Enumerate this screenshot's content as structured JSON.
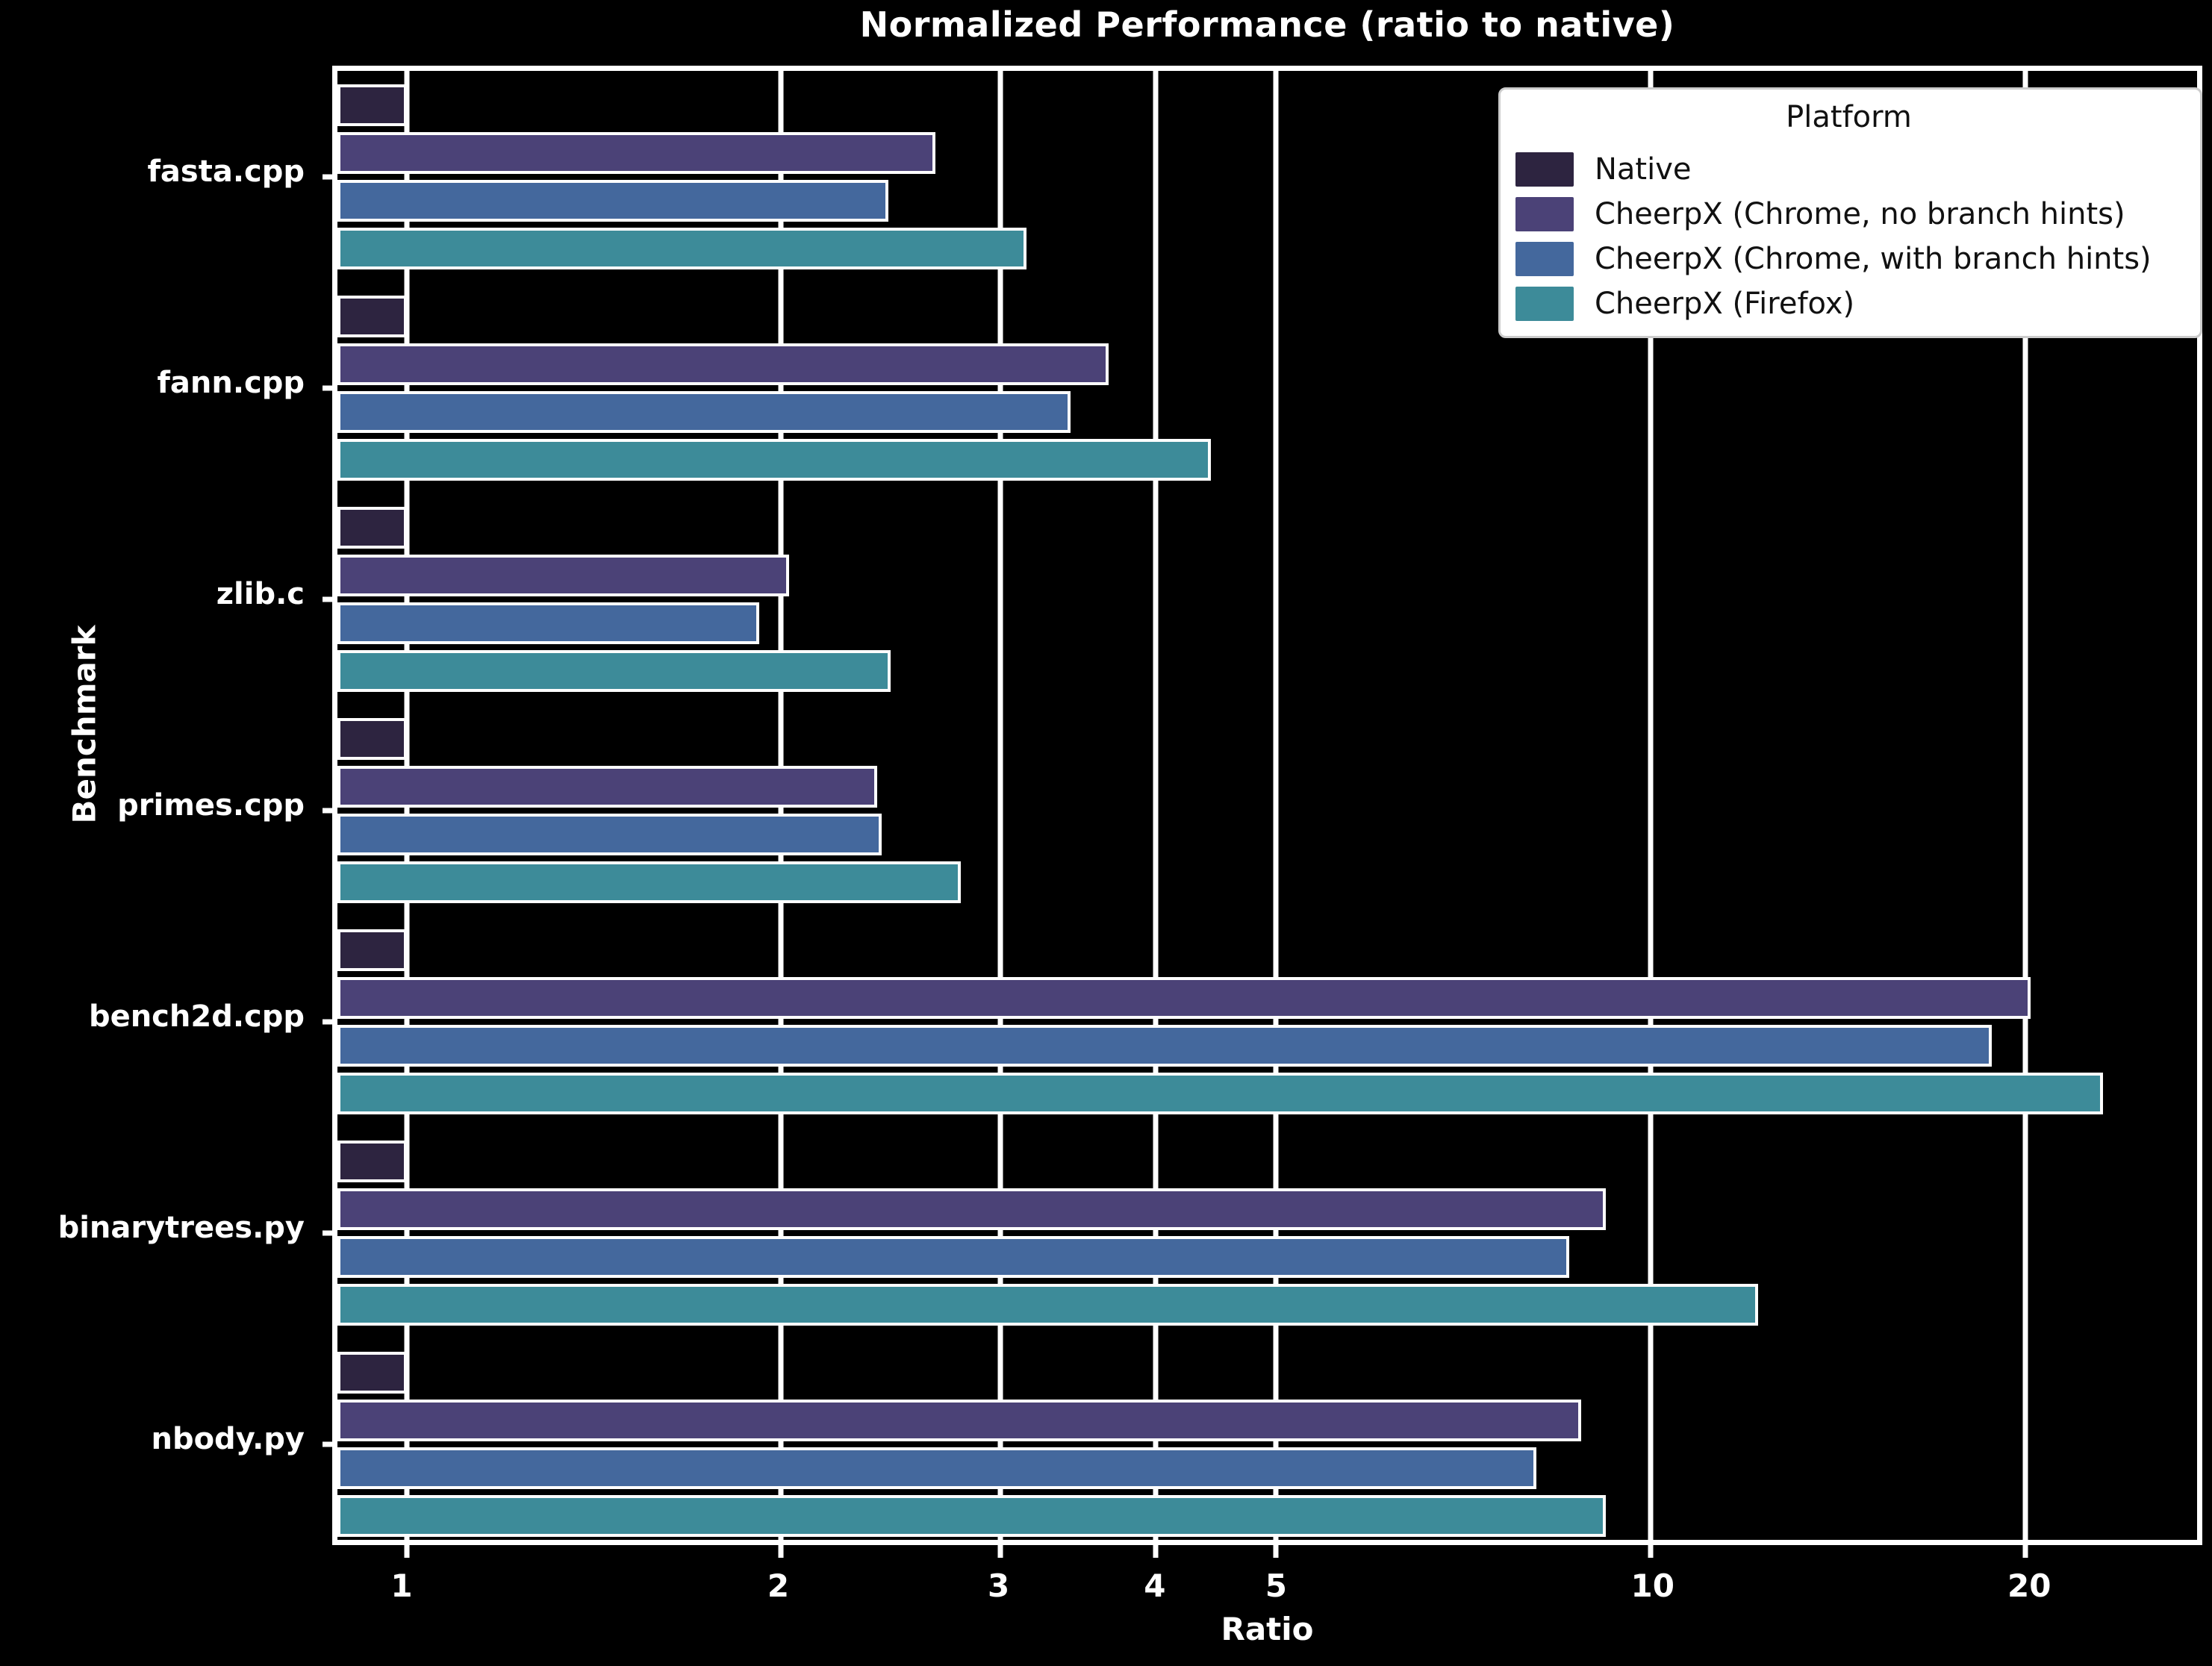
{
  "title": "Normalized Performance (ratio to native)",
  "xlabel": "Ratio",
  "ylabel": "Benchmark",
  "background_color": "#000000",
  "foreground_color": "#ffffff",
  "legend": {
    "title": "Platform",
    "items": [
      {
        "label": "Native",
        "color": "#2d2440"
      },
      {
        "label": "CheerpX (Chrome, no branch hints)",
        "color": "#4b4277"
      },
      {
        "label": "CheerpX (Chrome, with branch hints)",
        "color": "#44689d"
      },
      {
        "label": "CheerpX (Firefox)",
        "color": "#3d8b99"
      }
    ]
  },
  "chart_data": {
    "type": "bar",
    "orientation": "horizontal",
    "x_scale": "log",
    "grid": true,
    "legend_position": "upper right",
    "title": "Normalized Performance (ratio to native)",
    "xlabel": "Ratio",
    "ylabel": "Benchmark",
    "xlim": [
      0.88,
      27.5
    ],
    "x_ticks": [
      1,
      2,
      3,
      4,
      5,
      10,
      20
    ],
    "categories": [
      "fasta.cpp",
      "fann.cpp",
      "zlib.c",
      "primes.cpp",
      "bench2d.cpp",
      "binarytrees.py",
      "nbody.py"
    ],
    "series": [
      {
        "name": "Native",
        "color": "#2d2440",
        "values": [
          1.0,
          1.0,
          1.0,
          1.0,
          1.0,
          1.0,
          1.0
        ]
      },
      {
        "name": "CheerpX (Chrome, no branch hints)",
        "color": "#4b4277",
        "values": [
          2.66,
          3.67,
          2.03,
          2.39,
          20.2,
          9.2,
          8.8
        ]
      },
      {
        "name": "CheerpX (Chrome, with branch hints)",
        "color": "#44689d",
        "values": [
          2.44,
          3.42,
          1.92,
          2.41,
          18.8,
          8.6,
          8.1
        ]
      },
      {
        "name": "CheerpX (Firefox)",
        "color": "#3d8b99",
        "values": [
          3.15,
          4.43,
          2.45,
          2.79,
          23.1,
          12.2,
          9.2
        ]
      }
    ]
  }
}
